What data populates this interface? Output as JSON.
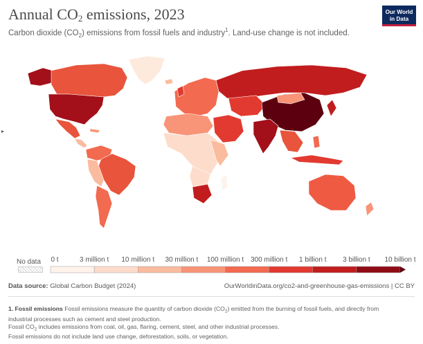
{
  "header": {
    "title_prefix": "Annual CO",
    "title_sub": "2",
    "title_suffix": " emissions, 2023",
    "subtitle_prefix": "Carbon dioxide (CO",
    "subtitle_sub": "2",
    "subtitle_mid": ") emissions from fossil fuels and industry",
    "subtitle_sup": "1",
    "subtitle_suffix": ". Land-use change is not included.",
    "logo_line1": "Our World",
    "logo_line2": "in Data"
  },
  "legend": {
    "no_data_label": "No data",
    "bins": [
      {
        "label": "0 t",
        "color": "#fff3ec"
      },
      {
        "label": "3 million t",
        "color": "#fddccb"
      },
      {
        "label": "10 million t",
        "color": "#fbbb9f"
      },
      {
        "label": "30 million t",
        "color": "#f89477"
      },
      {
        "label": "100 million t",
        "color": "#f26a4f"
      },
      {
        "label": "300 million t",
        "color": "#e23a31"
      },
      {
        "label": "1 billion t",
        "color": "#c11d1e"
      },
      {
        "label": "3 billion t",
        "color": "#8f0c16"
      },
      {
        "label": "10 billion t",
        "color": "#5c0010"
      }
    ]
  },
  "map_regions": [
    {
      "name": "USA",
      "value_band": "3 billion t",
      "color": "#a3101a"
    },
    {
      "name": "China",
      "value_band": "10 billion t",
      "color": "#5c0010"
    },
    {
      "name": "India",
      "value_band": "1 billion t",
      "color": "#a3101a"
    },
    {
      "name": "Russia",
      "value_band": "1 billion t",
      "color": "#c11d1e"
    },
    {
      "name": "Canada",
      "value_band": "300 million t",
      "color": "#e8543c"
    },
    {
      "name": "Brazil",
      "value_band": "300 million t",
      "color": "#e8543c"
    },
    {
      "name": "Australia",
      "value_band": "300 million t",
      "color": "#ef5a42"
    },
    {
      "name": "Greenland",
      "value_band": "0 t",
      "color": "#fdeadd"
    }
  ],
  "footer": {
    "source_label": "Data source:",
    "source_value": " Global Carbon Budget (2024)",
    "url": "OurWorldinData.org/co2-and-greenhouse-gas-emissions | CC BY"
  },
  "footnote": {
    "heading": "1. Fossil emissions",
    "line1a": " Fossil emissions measure the quantity of carbon dioxide (CO",
    "line1sub": "2",
    "line1b": ") emitted from the burning of fossil fuels, and directly from",
    "line2": "industrial processes such as cement and steel production.",
    "line3a": "Fossil CO",
    "line3sub": "2",
    "line3b": " includes emissions from coal, oil, gas, flaring, cement, steel, and other industrial processes.",
    "line4": "Fossil emissions do not include land use change, deforestation, soils, or vegetation."
  },
  "colors": {
    "brand_navy": "#0d2a5e",
    "brand_red": "#c41e3a",
    "ocean": "#ffffff"
  }
}
